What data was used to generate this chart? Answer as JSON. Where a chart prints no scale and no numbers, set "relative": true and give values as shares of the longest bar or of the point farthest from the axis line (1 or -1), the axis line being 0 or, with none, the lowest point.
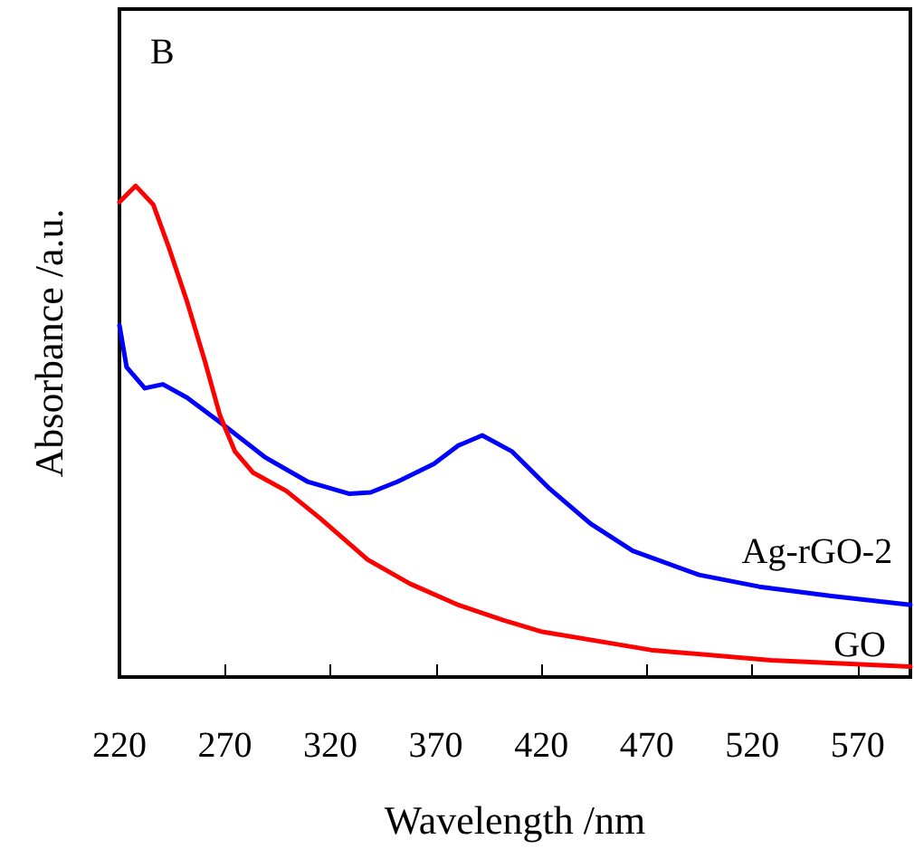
{
  "chart_data": {
    "type": "line",
    "title": "B",
    "xlabel": "Wavelength /nm",
    "ylabel": "Absorbance /a.u.",
    "relative": true,
    "marker": "none",
    "line_style": "solid",
    "xlim": [
      220,
      595
    ],
    "xticks": [
      220,
      270,
      320,
      370,
      420,
      470,
      520,
      570
    ],
    "series": [
      {
        "name": "Ag-rGO-2",
        "color": "#0000ff",
        "x": [
          220,
          223.4,
          232,
          240.6,
          252,
          269.1,
          289.2,
          309.1,
          329.1,
          339.1,
          352,
          369.1,
          380.5,
          392,
          406.2,
          423.3,
          443.4,
          463.4,
          494.8,
          523.3,
          557.6,
          595
        ],
        "values": [
          0.716,
          0.631,
          0.588,
          0.596,
          0.569,
          0.514,
          0.447,
          0.398,
          0.373,
          0.376,
          0.398,
          0.434,
          0.471,
          0.492,
          0.459,
          0.386,
          0.312,
          0.257,
          0.208,
          0.184,
          0.165,
          0.147
        ]
      },
      {
        "name": "GO",
        "color": "#ff0000",
        "x": [
          220,
          227.7,
          236,
          243.4,
          252,
          260.5,
          267.7,
          274.8,
          283.4,
          299.1,
          314.9,
          337.7,
          357.7,
          380.5,
          401.9,
          420.5,
          472,
          529,
          595
        ],
        "values": [
          0.967,
          1,
          0.962,
          0.875,
          0.765,
          0.643,
          0.532,
          0.459,
          0.416,
          0.379,
          0.324,
          0.239,
          0.19,
          0.147,
          0.116,
          0.092,
          0.055,
          0.034,
          0.021
        ]
      }
    ]
  }
}
